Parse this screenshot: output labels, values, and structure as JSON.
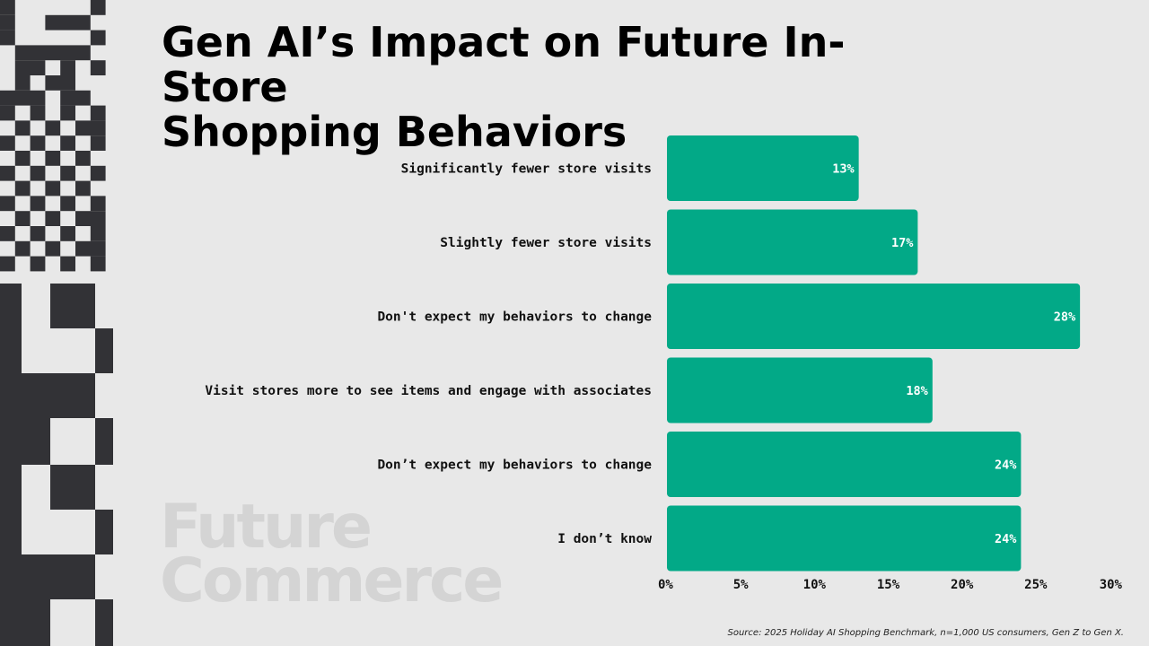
{
  "brand": {
    "watermark_line1": "Future",
    "watermark_line2": "Commerce",
    "dark_color": "#323236",
    "light_color": "#e8e8e8"
  },
  "header": {
    "title_line1": "Gen AI’s Impact on Future In-Store",
    "title_line2": "Shopping Behaviors"
  },
  "footer": {
    "source": "Source: 2025 Holiday AI Shopping Benchmark, n=1,000 US consumers, Gen Z to Gen X."
  },
  "chart_data": {
    "type": "bar",
    "orientation": "horizontal",
    "title": "Gen AI’s Impact on Future In-Store Shopping Behaviors",
    "bar_color": "#02a987",
    "categories": [
      "Significantly fewer store visits",
      "Slightly fewer store visits",
      "Don't expect my behaviors to change",
      "Visit stores more to see items and engage with associates",
      "Don’t expect my behaviors to change",
      "I don’t know"
    ],
    "values": [
      13,
      17,
      28,
      18,
      24,
      24
    ],
    "value_labels": [
      "13%",
      "17%",
      "28%",
      "18%",
      "24%",
      "24%"
    ],
    "xlim": [
      0,
      30
    ],
    "ticks": [
      0,
      5,
      10,
      15,
      20,
      25,
      30
    ],
    "tick_labels": [
      "0%",
      "5%",
      "10%",
      "15%",
      "20%",
      "25%",
      "30%"
    ],
    "xlabel": "",
    "ylabel": "",
    "grid": false,
    "legend": "none"
  }
}
